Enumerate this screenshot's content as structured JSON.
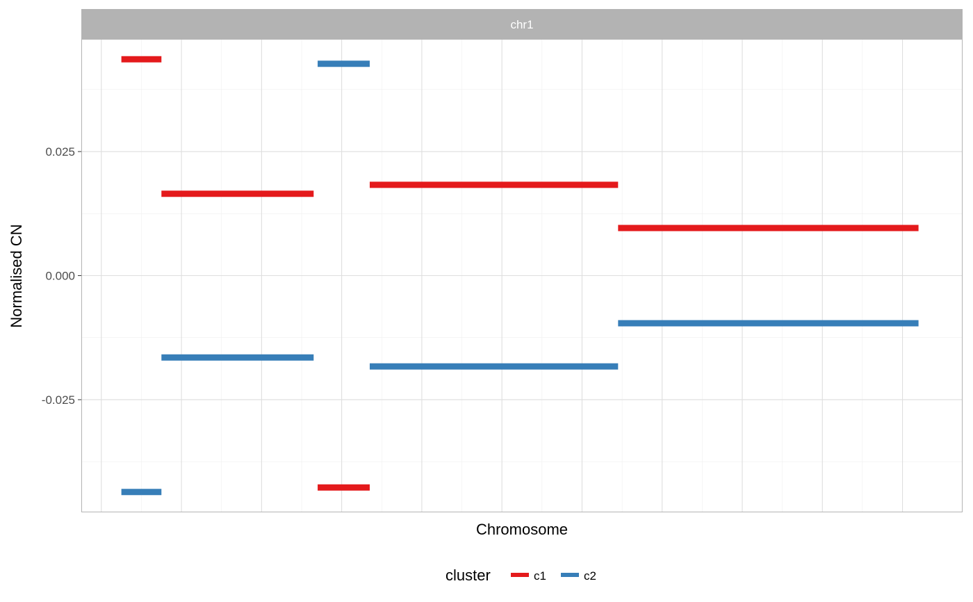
{
  "chart_data": {
    "type": "line",
    "facet_label": "chr1",
    "xlabel": "Chromosome",
    "ylabel": "Normalised CN",
    "ylim": [
      -0.0477,
      0.0477
    ],
    "xlim": [
      -0.5,
      21.5
    ],
    "y_ticks": [
      {
        "value": 0.025,
        "label": "0.025"
      },
      {
        "value": 0.0,
        "label": "0.000"
      },
      {
        "value": -0.025,
        "label": "-0.025"
      }
    ],
    "x_ticks_shown": false,
    "grid": true,
    "legend": {
      "title": "cluster",
      "position": "bottom",
      "entries": [
        {
          "name": "c1",
          "color": "#e41a1c"
        },
        {
          "name": "c2",
          "color": "#377eb8"
        }
      ]
    },
    "series": [
      {
        "name": "c1",
        "color": "#e41a1c",
        "segments": [
          {
            "x_start": 0.5,
            "x_end": 1.5,
            "y": 0.0436
          },
          {
            "x_start": 1.5,
            "x_end": 5.3,
            "y": 0.0165
          },
          {
            "x_start": 5.4,
            "x_end": 6.7,
            "y": -0.0427
          },
          {
            "x_start": 6.7,
            "x_end": 12.9,
            "y": 0.0183
          },
          {
            "x_start": 12.9,
            "x_end": 20.4,
            "y": 0.0096
          }
        ]
      },
      {
        "name": "c2",
        "color": "#377eb8",
        "segments": [
          {
            "x_start": 0.5,
            "x_end": 1.5,
            "y": -0.0436
          },
          {
            "x_start": 1.5,
            "x_end": 5.3,
            "y": -0.0165
          },
          {
            "x_start": 5.4,
            "x_end": 6.7,
            "y": 0.0427
          },
          {
            "x_start": 6.7,
            "x_end": 12.9,
            "y": -0.0183
          },
          {
            "x_start": 12.9,
            "x_end": 20.4,
            "y": -0.0096
          }
        ]
      }
    ]
  }
}
